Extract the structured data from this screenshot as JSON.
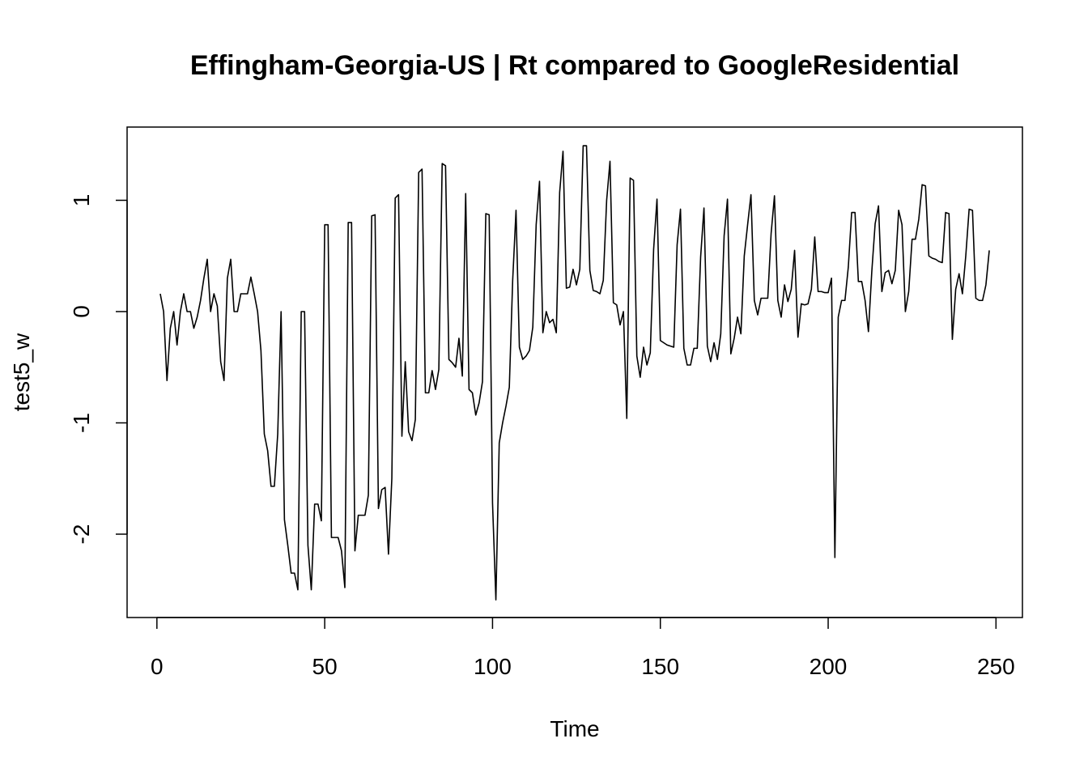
{
  "chart_data": {
    "type": "line",
    "title": "Effingham-Georgia-US | Rt compared to GoogleResidential",
    "xlabel": "Time",
    "ylabel": "test5_w",
    "color": "#000000",
    "x": [
      1,
      2,
      3,
      4,
      5,
      6,
      7,
      8,
      9,
      10,
      11,
      12,
      13,
      14,
      15,
      16,
      17,
      18,
      19,
      20,
      21,
      22,
      23,
      24,
      25,
      26,
      27,
      28,
      29,
      30,
      31,
      32,
      33,
      34,
      35,
      36,
      37,
      38,
      39,
      40,
      41,
      42,
      43,
      44,
      45,
      46,
      47,
      48,
      49,
      50,
      51,
      52,
      53,
      54,
      55,
      56,
      57,
      58,
      59,
      60,
      61,
      62,
      63,
      64,
      65,
      66,
      67,
      68,
      69,
      70,
      71,
      72,
      73,
      74,
      75,
      76,
      77,
      78,
      79,
      80,
      81,
      82,
      83,
      84,
      85,
      86,
      87,
      88,
      89,
      90,
      91,
      92,
      93,
      94,
      95,
      96,
      97,
      98,
      99,
      100,
      101,
      102,
      103,
      104,
      105,
      106,
      107,
      108,
      109,
      110,
      111,
      112,
      113,
      114,
      115,
      116,
      117,
      118,
      119,
      120,
      121,
      122,
      123,
      124,
      125,
      126,
      127,
      128,
      129,
      130,
      131,
      132,
      133,
      134,
      135,
      136,
      137,
      138,
      139,
      140,
      141,
      142,
      143,
      144,
      145,
      146,
      147,
      148,
      149,
      150,
      151,
      152,
      153,
      154,
      155,
      156,
      157,
      158,
      159,
      160,
      161,
      162,
      163,
      164,
      165,
      166,
      167,
      168,
      169,
      170,
      171,
      172,
      173,
      174,
      175,
      176,
      177,
      178,
      179,
      180,
      181,
      182,
      183,
      184,
      185,
      186,
      187,
      188,
      189,
      190,
      191,
      192,
      193,
      194,
      195,
      196,
      197,
      198,
      199,
      200,
      201,
      202,
      203,
      204,
      205,
      206,
      207,
      208,
      209,
      210,
      211,
      212,
      213,
      214,
      215,
      216,
      217,
      218,
      219,
      220,
      221,
      222,
      223,
      224,
      225,
      226,
      227,
      228,
      229,
      230,
      231,
      232,
      233,
      234,
      235,
      236,
      237,
      238,
      239,
      240,
      241,
      242,
      243,
      244,
      245,
      246,
      247,
      248
    ],
    "values": [
      0.16,
      0.0,
      -0.62,
      -0.15,
      0.0,
      -0.3,
      0.0,
      0.16,
      0.0,
      0.0,
      -0.15,
      -0.05,
      0.1,
      0.3,
      0.47,
      0.0,
      0.16,
      0.05,
      -0.45,
      -0.62,
      0.3,
      0.47,
      0.0,
      0.0,
      0.16,
      0.16,
      0.16,
      0.31,
      0.16,
      0.0,
      -0.35,
      -1.1,
      -1.25,
      -1.57,
      -1.57,
      -1.1,
      0.0,
      -1.87,
      -2.1,
      -2.35,
      -2.35,
      -2.5,
      0.0,
      0.0,
      -2.1,
      -2.5,
      -1.73,
      -1.73,
      -1.88,
      0.78,
      0.78,
      -2.03,
      -2.03,
      -2.03,
      -2.15,
      -2.48,
      0.8,
      0.8,
      -2.15,
      -1.83,
      -1.83,
      -1.83,
      -1.65,
      0.86,
      0.87,
      -1.77,
      -1.6,
      -1.58,
      -2.18,
      -1.5,
      1.02,
      1.05,
      -1.12,
      -0.45,
      -1.08,
      -1.16,
      -0.97,
      1.25,
      1.28,
      -0.73,
      -0.73,
      -0.53,
      -0.7,
      -0.52,
      1.33,
      1.31,
      -0.43,
      -0.46,
      -0.5,
      -0.24,
      -0.58,
      1.06,
      -0.7,
      -0.73,
      -0.93,
      -0.82,
      -0.63,
      0.88,
      0.87,
      -1.72,
      -2.59,
      -1.18,
      -1.0,
      -0.85,
      -0.68,
      0.28,
      0.91,
      -0.32,
      -0.43,
      -0.4,
      -0.35,
      -0.14,
      0.78,
      1.17,
      -0.19,
      0.0,
      -0.1,
      -0.07,
      -0.19,
      1.07,
      1.44,
      0.21,
      0.22,
      0.38,
      0.24,
      0.38,
      1.49,
      1.49,
      0.37,
      0.19,
      0.18,
      0.16,
      0.28,
      1.0,
      1.35,
      0.08,
      0.06,
      -0.12,
      0.0,
      -0.96,
      1.2,
      1.18,
      -0.4,
      -0.59,
      -0.32,
      -0.48,
      -0.37,
      0.56,
      1.01,
      -0.26,
      -0.28,
      -0.3,
      -0.31,
      -0.32,
      0.6,
      0.92,
      -0.33,
      -0.48,
      -0.48,
      -0.33,
      -0.33,
      0.49,
      0.93,
      -0.31,
      -0.45,
      -0.28,
      -0.43,
      -0.2,
      0.68,
      1.01,
      -0.38,
      -0.24,
      -0.05,
      -0.2,
      0.5,
      0.78,
      1.05,
      0.1,
      -0.03,
      0.12,
      0.12,
      0.12,
      0.7,
      1.04,
      0.1,
      -0.05,
      0.24,
      0.09,
      0.2,
      0.55,
      -0.23,
      0.07,
      0.06,
      0.07,
      0.2,
      0.67,
      0.18,
      0.18,
      0.17,
      0.17,
      0.3,
      -2.21,
      -0.05,
      0.1,
      0.1,
      0.4,
      0.89,
      0.89,
      0.27,
      0.27,
      0.1,
      -0.18,
      0.36,
      0.79,
      0.95,
      0.18,
      0.35,
      0.37,
      0.25,
      0.37,
      0.91,
      0.78,
      0.0,
      0.18,
      0.65,
      0.65,
      0.83,
      1.14,
      1.13,
      0.5,
      0.48,
      0.47,
      0.45,
      0.44,
      0.89,
      0.88,
      -0.25,
      0.2,
      0.34,
      0.16,
      0.5,
      0.92,
      0.91,
      0.12,
      0.1,
      0.1,
      0.24,
      0.55
    ],
    "xlim": [
      -8.88,
      257.88
    ],
    "ylim": [
      -2.749,
      1.658
    ],
    "xticks": [
      0,
      50,
      100,
      150,
      200,
      250
    ],
    "yticks": [
      -2,
      -1,
      0,
      1
    ]
  }
}
